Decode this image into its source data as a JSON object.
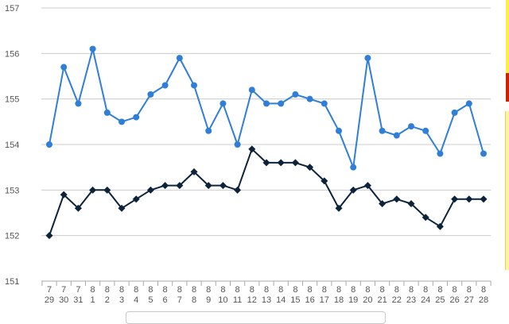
{
  "chart_data": {
    "type": "line",
    "x": [
      [
        "7",
        "29"
      ],
      [
        "7",
        "30"
      ],
      [
        "7",
        "31"
      ],
      [
        "8",
        "1"
      ],
      [
        "8",
        "2"
      ],
      [
        "8",
        "3"
      ],
      [
        "8",
        "4"
      ],
      [
        "8",
        "5"
      ],
      [
        "8",
        "6"
      ],
      [
        "8",
        "7"
      ],
      [
        "8",
        "8"
      ],
      [
        "8",
        "9"
      ],
      [
        "8",
        "10"
      ],
      [
        "8",
        "11"
      ],
      [
        "8",
        "12"
      ],
      [
        "8",
        "13"
      ],
      [
        "8",
        "14"
      ],
      [
        "8",
        "15"
      ],
      [
        "8",
        "16"
      ],
      [
        "8",
        "17"
      ],
      [
        "8",
        "18"
      ],
      [
        "8",
        "19"
      ],
      [
        "8",
        "20"
      ],
      [
        "8",
        "21"
      ],
      [
        "8",
        "22"
      ],
      [
        "8",
        "23"
      ],
      [
        "8",
        "24"
      ],
      [
        "8",
        "25"
      ],
      [
        "8",
        "26"
      ],
      [
        "8",
        "27"
      ],
      [
        "8",
        "28"
      ]
    ],
    "series": [
      {
        "color": "#2f7ed8",
        "marker": "circle",
        "values": [
          154.0,
          155.7,
          154.9,
          156.1,
          154.7,
          154.5,
          154.6,
          155.1,
          155.3,
          155.9,
          155.3,
          154.3,
          154.9,
          154.0,
          155.2,
          154.9,
          154.9,
          155.1,
          155.0,
          154.9,
          154.3,
          153.5,
          155.9,
          154.3,
          154.2,
          154.4,
          154.3,
          153.8,
          154.7,
          154.9,
          153.8
        ]
      },
      {
        "color": "#0d233a",
        "marker": "diamond",
        "values": [
          152.0,
          152.9,
          152.6,
          153.0,
          153.0,
          152.6,
          152.8,
          153.0,
          153.1,
          153.1,
          153.4,
          153.1,
          153.1,
          153.0,
          153.9,
          153.6,
          153.6,
          153.6,
          153.5,
          153.2,
          152.6,
          153.0,
          153.1,
          152.7,
          152.8,
          152.7,
          152.4,
          152.2,
          152.8,
          152.8,
          152.8
        ]
      }
    ],
    "yticks": [
      "151",
      "152",
      "153",
      "154",
      "155",
      "156",
      "157"
    ],
    "ylim": [
      151,
      157
    ],
    "grid": true,
    "legend": "none"
  },
  "side_panel_colors": [
    "#ffee44",
    "#cc2200",
    "#ffee44"
  ]
}
